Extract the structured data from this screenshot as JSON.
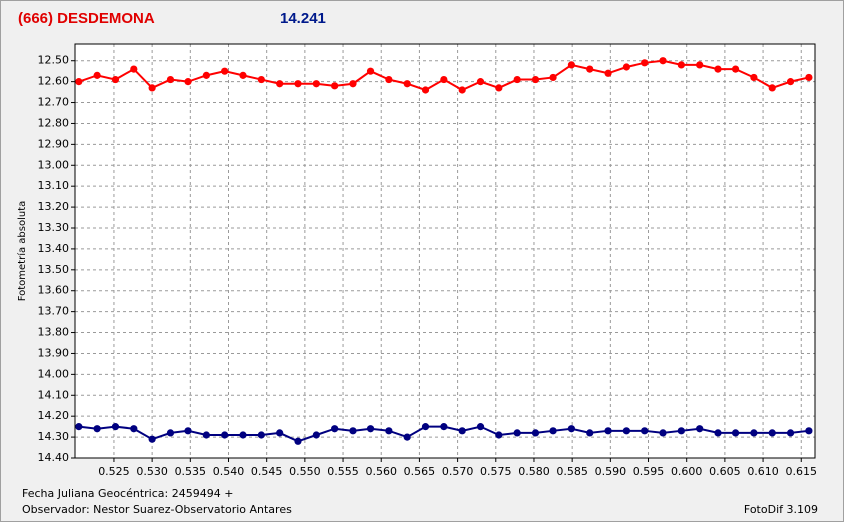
{
  "chart_data": {
    "type": "line",
    "title": "(666) DESDEMONA",
    "subtitle": "14.241",
    "y_label": "Fotometría absoluta",
    "x_label": "Fecha Juliana Geocéntrica: 2459494 +",
    "observer": "Observador: Nestor Suarez-Observatorio Antares",
    "software": "FotoDif 3.109",
    "title_color": "#e00000",
    "subtitle_color": "#001a8c",
    "grid": true,
    "y_reversed": true,
    "xlim": [
      0.5199,
      0.6168
    ],
    "ylim": [
      12.42,
      14.4
    ],
    "xticks": [
      0.525,
      {
        "value": 0.53,
        "label": "0.530"
      },
      0.535,
      {
        "value": 0.54,
        "label": "0.540"
      },
      0.545,
      {
        "value": 0.55,
        "label": "0.550"
      },
      0.555,
      {
        "value": 0.56,
        "label": "0.560"
      },
      0.565,
      {
        "value": 0.57,
        "label": "0.570"
      },
      0.575,
      {
        "value": 0.58,
        "label": "0.580"
      },
      0.585,
      {
        "value": 0.59,
        "label": "0.590"
      },
      0.595,
      {
        "value": 0.6,
        "label": "0.600"
      },
      0.605,
      {
        "value": 0.61,
        "label": "0.610"
      },
      0.615
    ],
    "yticks": [
      {
        "value": 12.5,
        "label": "12.50"
      },
      {
        "value": 12.6,
        "label": "12.60"
      },
      {
        "value": 12.7,
        "label": "12.70"
      },
      {
        "value": 12.8,
        "label": "12.80"
      },
      {
        "value": 12.9,
        "label": "12.90"
      },
      {
        "value": 13.0,
        "label": "13.00"
      },
      {
        "value": 13.1,
        "label": "13.10"
      },
      {
        "value": 13.2,
        "label": "13.20"
      },
      {
        "value": 13.3,
        "label": "13.30"
      },
      {
        "value": 13.4,
        "label": "13.40"
      },
      {
        "value": 13.5,
        "label": "13.50"
      },
      {
        "value": 13.6,
        "label": "13.60"
      },
      {
        "value": 13.7,
        "label": "13.70"
      },
      {
        "value": 13.8,
        "label": "13.80"
      },
      {
        "value": 13.9,
        "label": "13.90"
      },
      {
        "value": 14.0,
        "label": "14.00"
      },
      {
        "value": 14.1,
        "label": "14.10"
      },
      {
        "value": 14.2,
        "label": "14.20"
      },
      {
        "value": 14.3,
        "label": "14.30"
      },
      {
        "value": 14.4,
        "label": "14.40"
      }
    ],
    "x": [
      0.5204,
      0.5228,
      0.5252,
      0.5276,
      0.53,
      0.5324,
      0.5347,
      0.5371,
      0.5395,
      0.5419,
      0.5443,
      0.5467,
      0.5491,
      0.5515,
      0.5539,
      0.5563,
      0.5586,
      0.561,
      0.5634,
      0.5658,
      0.5682,
      0.5706,
      0.573,
      0.5754,
      0.5778,
      0.5802,
      0.5825,
      0.5849,
      0.5873,
      0.5897,
      0.5921,
      0.5945,
      0.5969,
      0.5993,
      0.6017,
      0.6041,
      0.6064,
      0.6088,
      0.6112,
      0.6136,
      0.616
    ],
    "series": [
      {
        "color": "#ff0000",
        "values": [
          12.6,
          12.57,
          12.59,
          12.54,
          12.63,
          12.59,
          12.6,
          12.57,
          12.55,
          12.57,
          12.59,
          12.61,
          12.61,
          12.61,
          12.62,
          12.61,
          12.55,
          12.59,
          12.61,
          12.64,
          12.59,
          12.64,
          12.6,
          12.63,
          12.59,
          12.59,
          12.58,
          12.52,
          12.54,
          12.56,
          12.53,
          12.51,
          12.5,
          12.52,
          12.52,
          12.54,
          12.54,
          12.58,
          12.63,
          12.6,
          12.58
        ]
      },
      {
        "color": "#000080",
        "values": [
          14.25,
          14.26,
          14.25,
          14.26,
          14.31,
          14.28,
          14.27,
          14.29,
          14.29,
          14.29,
          14.29,
          14.28,
          14.32,
          14.29,
          14.26,
          14.27,
          14.26,
          14.27,
          14.3,
          14.25,
          14.25,
          14.27,
          14.25,
          14.29,
          14.28,
          14.28,
          14.27,
          14.26,
          14.28,
          14.27,
          14.27,
          14.27,
          14.28,
          14.27,
          14.26,
          14.28,
          14.28,
          14.28,
          14.28,
          14.28,
          14.27
        ]
      }
    ]
  }
}
